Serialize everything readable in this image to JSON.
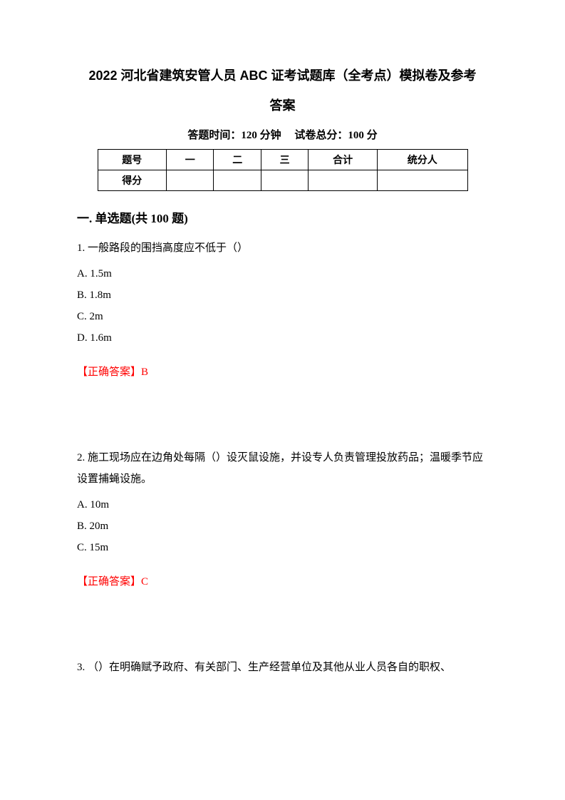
{
  "document": {
    "title_line1": "2022 河北省建筑安管人员 ABC 证考试题库（全考点）模拟卷及参考",
    "title_line2": "答案",
    "exam_time_label": "答题时间：120 分钟",
    "exam_score_label": "试卷总分：100 分",
    "table": {
      "row1": [
        "题号",
        "一",
        "二",
        "三",
        "合计",
        "统分人"
      ],
      "row2_label": "得分"
    },
    "section": {
      "heading": "一. 单选题(共 100 题)"
    },
    "questions": [
      {
        "number": "1.",
        "text": "一般路段的围挡高度应不低于（）",
        "options": [
          "A. 1.5m",
          "B. 1.8m",
          "C. 2m",
          "D. 1.6m"
        ],
        "answer_label": "【正确答案】B"
      },
      {
        "number": "2.",
        "text": "施工现场应在边角处每隔（）设灭鼠设施，并设专人负责管理投放药品；温暖季节应设置捕蝇设施。",
        "options": [
          "A. 10m",
          "B. 20m",
          "C. 15m"
        ],
        "answer_label": "【正确答案】C"
      },
      {
        "number": "3.",
        "text": "（）在明确赋予政府、有关部门、生产经营单位及其他从业人员各自的职权、"
      }
    ],
    "colors": {
      "text": "#000000",
      "answer": "#ff0000",
      "background": "#ffffff",
      "border": "#000000"
    }
  }
}
